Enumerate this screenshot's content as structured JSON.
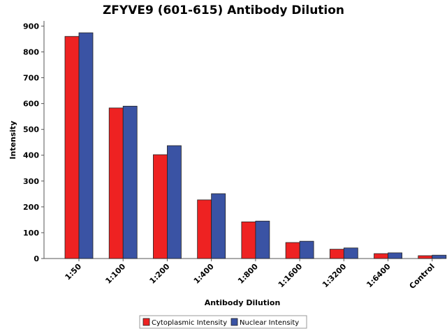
{
  "chart_data": {
    "type": "bar",
    "title": "ZFYVE9 (601-615) Antibody Dilution",
    "xlabel": "Antibody Dilution",
    "ylabel": "Intensity",
    "categories": [
      "1:50",
      "1:100",
      "1:200",
      "1:400",
      "1:800",
      "1:1600",
      "1:3200",
      "1:6400",
      "Control"
    ],
    "series": [
      {
        "name": "Cytoplasmic Intensity",
        "color": "#ee2222",
        "values": [
          860,
          583,
          402,
          227,
          142,
          62,
          36,
          19,
          11
        ]
      },
      {
        "name": "Nuclear Intensity",
        "color": "#3a53a4",
        "values": [
          874,
          590,
          437,
          251,
          145,
          67,
          41,
          22,
          13
        ]
      }
    ],
    "ylim": [
      0,
      920
    ],
    "yticks": [
      0,
      100,
      200,
      300,
      400,
      500,
      600,
      700,
      800,
      900
    ],
    "grid": false,
    "legend": "bottom"
  }
}
